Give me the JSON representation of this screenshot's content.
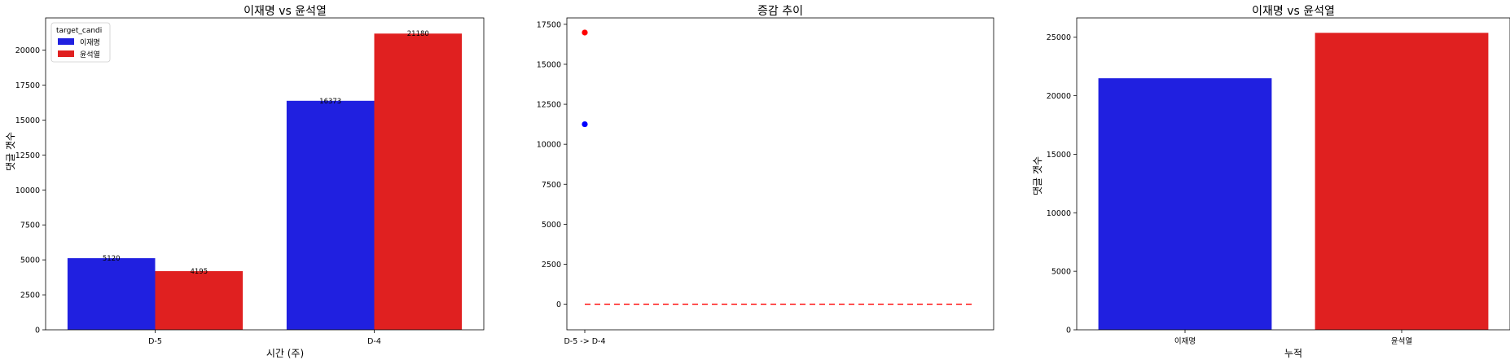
{
  "chart_data": [
    {
      "type": "bar",
      "title": "이재명 vs 윤석열",
      "xlabel": "시간 (주)",
      "ylabel": "댓글 갯수",
      "categories": [
        "D-5",
        "D-4"
      ],
      "series": [
        {
          "name": "이재명",
          "values": [
            5120,
            16373
          ],
          "color": "#2020e0"
        },
        {
          "name": "윤석열",
          "values": [
            4195,
            21180
          ],
          "color": "#e02020"
        }
      ],
      "data_labels": [
        "5120",
        "4195",
        "16373",
        "21180"
      ],
      "ylim": [
        0,
        22300
      ],
      "yticks": [
        0,
        2500,
        5000,
        7500,
        10000,
        12500,
        15000,
        17500,
        20000
      ],
      "ytick_labels": [
        "0",
        "2500",
        "5000",
        "7500",
        "10000",
        "12500",
        "15000",
        "17500",
        "20000"
      ],
      "legend": {
        "title": "target_candi",
        "placement": "top-left"
      },
      "grid": false
    },
    {
      "type": "scatter",
      "title": "증감 추이",
      "xlabel": "",
      "ylabel": "",
      "categories": [
        "D-5 -> D-4"
      ],
      "points": [
        {
          "x": "D-5 -> D-4",
          "y": 16985,
          "color": "#ff0000"
        },
        {
          "x": "D-5 -> D-4",
          "y": 11253,
          "color": "#0000ff"
        }
      ],
      "reference_line": {
        "y": 0,
        "style": "dashed",
        "color": "#ff0000"
      },
      "ylim": [
        -1600,
        17900
      ],
      "yticks": [
        0,
        2500,
        5000,
        7500,
        10000,
        12500,
        15000,
        17500
      ],
      "ytick_labels": [
        "0",
        "2500",
        "5000",
        "7500",
        "10000",
        "12500",
        "15000",
        "17500"
      ],
      "grid": false
    },
    {
      "type": "bar",
      "title": "이재명 vs 윤석열",
      "xlabel": "누적",
      "ylabel": "댓글 갯수",
      "categories": [
        "이재명",
        "윤석열"
      ],
      "values": [
        21493,
        25375
      ],
      "colors": [
        "#2020e0",
        "#e02020"
      ],
      "ylim": [
        0,
        26650
      ],
      "yticks": [
        0,
        5000,
        10000,
        15000,
        20000,
        25000
      ],
      "ytick_labels": [
        "0",
        "5000",
        "10000",
        "15000",
        "20000",
        "25000"
      ],
      "grid": false
    }
  ]
}
